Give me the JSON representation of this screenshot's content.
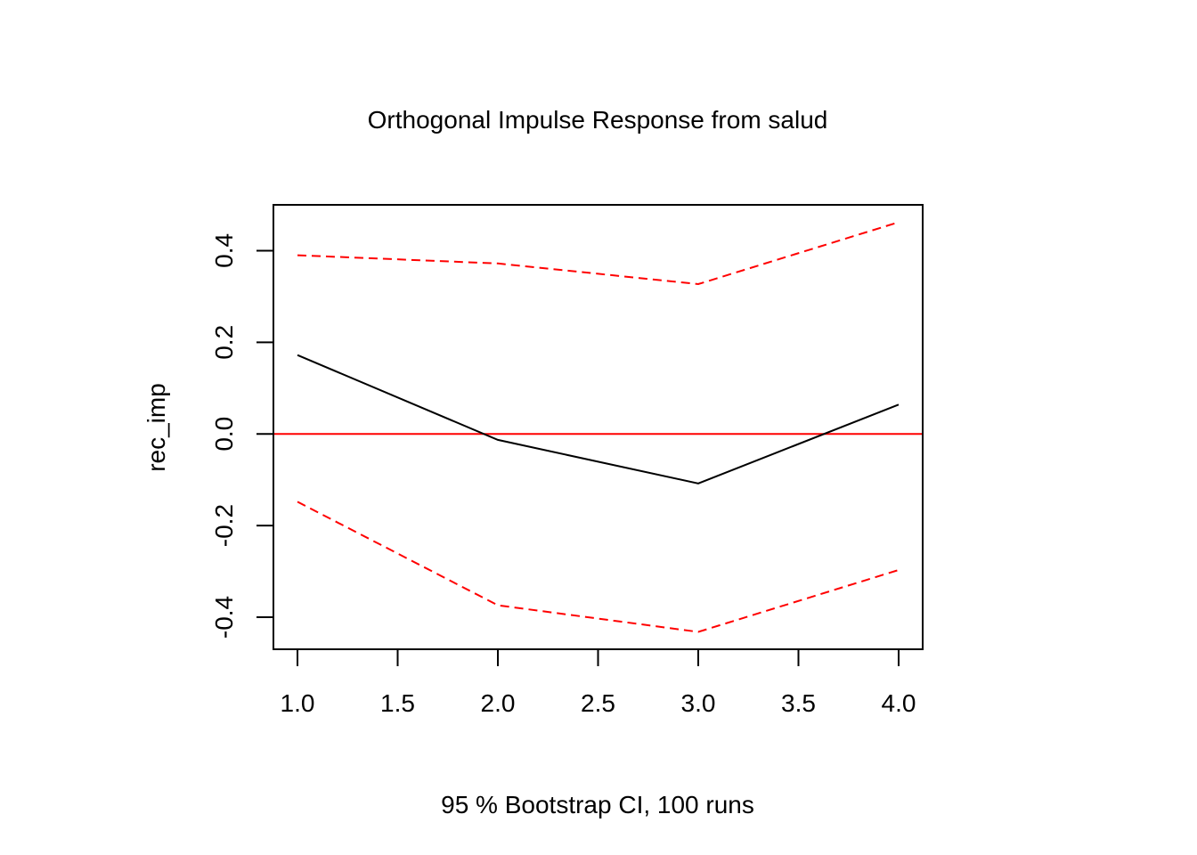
{
  "chart_data": {
    "type": "line",
    "title": "Orthogonal Impulse Response from salud",
    "xlabel": "95 % Bootstrap CI,  100 runs",
    "ylabel": "rec_imp",
    "xlim": [
      0.88,
      4.12
    ],
    "ylim": [
      -0.47,
      0.5
    ],
    "x_ticks": [
      1.0,
      1.5,
      2.0,
      2.5,
      3.0,
      3.5,
      4.0
    ],
    "x_tick_labels": [
      "1.0",
      "1.5",
      "2.0",
      "2.5",
      "3.0",
      "3.5",
      "4.0"
    ],
    "y_ticks": [
      -0.4,
      -0.2,
      0.0,
      0.2,
      0.4
    ],
    "y_tick_labels": [
      "-0.4",
      "-0.2",
      "0.0",
      "0.2",
      "0.4"
    ],
    "grid": false,
    "x": [
      1,
      2,
      3,
      4
    ],
    "series": [
      {
        "values": [
          0.172,
          -0.013,
          -0.108,
          0.064
        ],
        "color": "#000000",
        "style": "solid"
      },
      {
        "values": [
          0.39,
          0.372,
          0.327,
          0.462
        ],
        "color": "#ff0000",
        "style": "dashed"
      },
      {
        "values": [
          -0.148,
          -0.374,
          -0.432,
          -0.297
        ],
        "color": "#ff0000",
        "style": "dashed"
      }
    ],
    "reference_line": {
      "y": 0.0,
      "color": "#ff0000"
    }
  }
}
